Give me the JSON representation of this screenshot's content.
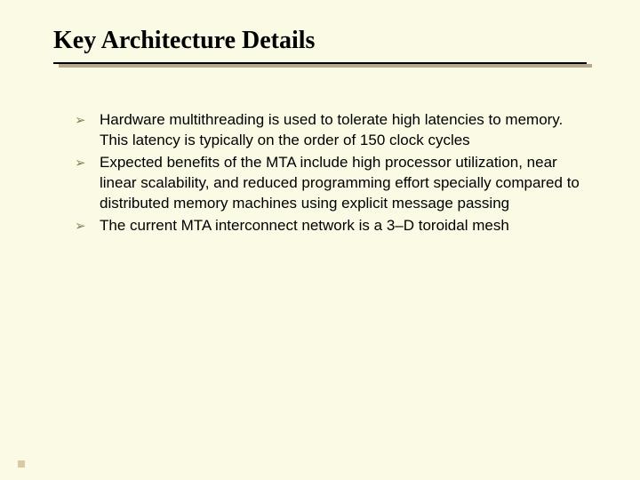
{
  "title": "Key Architecture Details",
  "title_fontsize": 28,
  "title_font": "Times New Roman",
  "title_weight": "bold",
  "title_color": "#000000",
  "background_color": "#fbfae5",
  "underline_color": "#000000",
  "underline_shadow_color": "#b7a98b",
  "bullet_arrow_glyph": "➢",
  "bullet_arrow_color": "#8a8257",
  "body_fontsize": 17,
  "body_color": "#000000",
  "bullets": [
    "Hardware multithreading is used to tolerate high latencies to memory. This latency is typically on the order of 150 clock cycles",
    "Expected benefits of the MTA include high processor utilization, near linear scalability, and reduced programming effort specially compared to distributed memory machines using explicit message passing",
    "The current MTA interconnect network is a 3–D toroidal mesh"
  ],
  "footer_square_color": "#d8caa4"
}
